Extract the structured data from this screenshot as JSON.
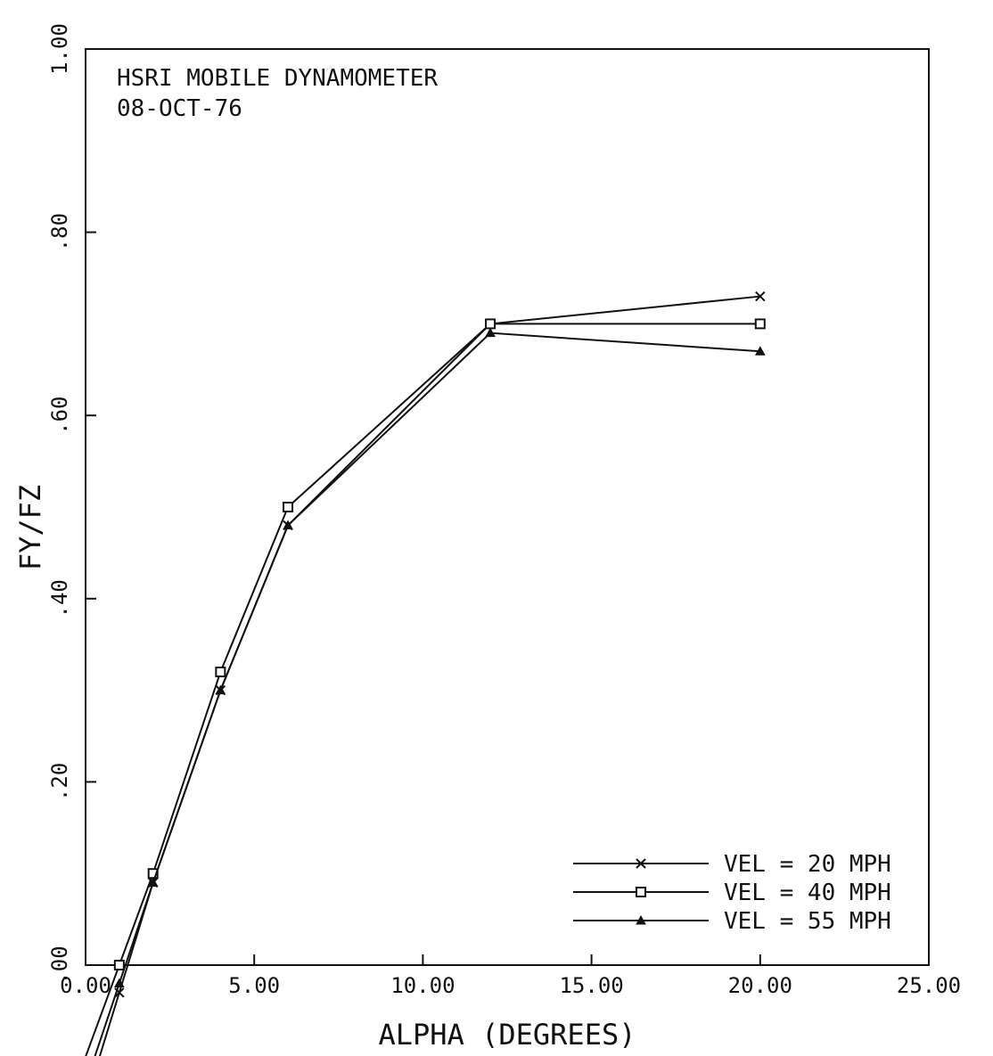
{
  "chart_data": {
    "type": "line",
    "annotations": [
      "HSRI MOBILE DYNAMOMETER",
      "08-OCT-76"
    ],
    "xlabel": "ALPHA (DEGREES)",
    "ylabel": "FY/FZ",
    "xlim": [
      0,
      25
    ],
    "ylim": [
      0,
      1
    ],
    "x_ticks": [
      0,
      5,
      10,
      15,
      20,
      25
    ],
    "x_tick_labels": [
      "0.00",
      "5.00",
      "10.00",
      "15.00",
      "20.00",
      "25.00"
    ],
    "y_ticks": [
      0,
      0.2,
      0.4,
      0.6,
      0.8,
      1.0
    ],
    "y_tick_labels": [
      ".00",
      ".20",
      ".40",
      ".60",
      ".80",
      "1.00"
    ],
    "grid": false,
    "legend_position": "bottom-right",
    "series": [
      {
        "name": "VEL = 20 MPH",
        "marker": "x",
        "x": [
          1,
          2,
          4,
          6,
          12,
          20
        ],
        "y": [
          -0.03,
          0.09,
          0.3,
          0.48,
          0.7,
          0.73
        ]
      },
      {
        "name": "VEL = 40 MPH",
        "marker": "square",
        "x": [
          1,
          2,
          4,
          6,
          12,
          20
        ],
        "y": [
          0.0,
          0.1,
          0.32,
          0.5,
          0.7,
          0.7
        ]
      },
      {
        "name": "VEL = 55 MPH",
        "marker": "triangle",
        "x": [
          1,
          2,
          4,
          6,
          12,
          20
        ],
        "y": [
          -0.02,
          0.09,
          0.3,
          0.48,
          0.69,
          0.67
        ]
      }
    ]
  }
}
